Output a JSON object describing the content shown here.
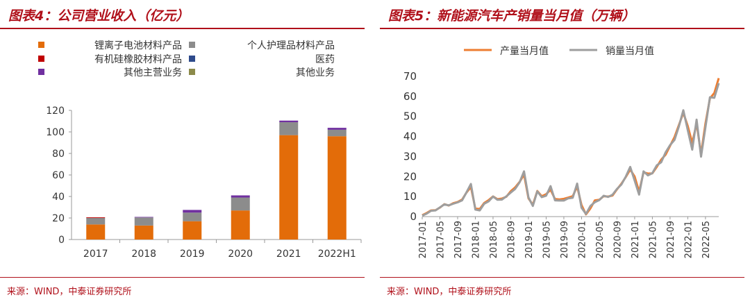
{
  "figures": [
    {
      "title": "图表4：公司营业收入（亿元）",
      "source": "来源：WIND，中泰证券研究所"
    },
    {
      "title": "图表5：新能源汽车产销量当月值（万辆）",
      "source": "来源：WIND，中泰证券研究所"
    }
  ],
  "chart_data": [
    {
      "type": "bar",
      "stacked": true,
      "title": "图表4：公司营业收入（亿元）",
      "categories": [
        "2017",
        "2018",
        "2019",
        "2020",
        "2021",
        "2022H1"
      ],
      "series": [
        {
          "name": "锂离子电池材料产品",
          "color": "#e36c09",
          "values": [
            14,
            13,
            17,
            27,
            97,
            96
          ]
        },
        {
          "name": "个人护理品材料产品",
          "color": "#8c8c8c",
          "values": [
            6,
            7.5,
            8,
            12,
            12,
            6
          ]
        },
        {
          "name": "有机硅橡胶材料产品",
          "color": "#c00000",
          "values": [
            0.6,
            0,
            0,
            0,
            0,
            0
          ]
        },
        {
          "name": "医药",
          "color": "#2e4a8b",
          "values": [
            0,
            0,
            0,
            0,
            0,
            0
          ]
        },
        {
          "name": "其他主营业务",
          "color": "#7030a0",
          "values": [
            0,
            0.5,
            2.5,
            2,
            1.5,
            1.8
          ]
        },
        {
          "name": "其他业务",
          "color": "#8c8a4a",
          "values": [
            0,
            0,
            0,
            0,
            0,
            0
          ]
        }
      ],
      "ylim": [
        0,
        120
      ],
      "yticks": [
        0,
        20,
        40,
        60,
        80,
        100,
        120
      ],
      "grid": false,
      "legend_position": "top"
    },
    {
      "type": "line",
      "title": "图表5：新能源汽车产销量当月值（万辆）",
      "x": [
        "2017-01",
        "2017-02",
        "2017-03",
        "2017-04",
        "2017-05",
        "2017-06",
        "2017-07",
        "2017-08",
        "2017-09",
        "2017-10",
        "2017-11",
        "2017-12",
        "2018-01",
        "2018-02",
        "2018-03",
        "2018-04",
        "2018-05",
        "2018-06",
        "2018-07",
        "2018-08",
        "2018-09",
        "2018-10",
        "2018-11",
        "2018-12",
        "2019-01",
        "2019-02",
        "2019-03",
        "2019-04",
        "2019-05",
        "2019-06",
        "2019-07",
        "2019-08",
        "2019-09",
        "2019-10",
        "2019-11",
        "2019-12",
        "2020-01",
        "2020-02",
        "2020-03",
        "2020-04",
        "2020-05",
        "2020-06",
        "2020-07",
        "2020-08",
        "2020-09",
        "2020-10",
        "2020-11",
        "2020-12",
        "2021-01",
        "2021-02",
        "2021-03",
        "2021-04",
        "2021-05",
        "2021-06",
        "2021-07",
        "2021-08",
        "2021-09",
        "2021-10",
        "2021-11",
        "2021-12",
        "2022-01",
        "2022-02",
        "2022-03",
        "2022-04",
        "2022-05",
        "2022-06",
        "2022-07",
        "2022-08"
      ],
      "xticks": [
        "2017-01",
        "2017-05",
        "2017-09",
        "2018-01",
        "2018-05",
        "2018-09",
        "2019-01",
        "2019-05",
        "2019-09",
        "2020-01",
        "2020-05",
        "2020-09",
        "2021-01",
        "2021-05",
        "2021-09",
        "2022-01",
        "2022-05"
      ],
      "series": [
        {
          "name": "产量当月值",
          "color": "#ed7d31",
          "values": [
            0.7,
            1.8,
            3.1,
            3.2,
            4.5,
            6.2,
            5.5,
            6.7,
            7.3,
            8.5,
            12.0,
            14.8,
            4.0,
            3.8,
            6.8,
            8.2,
            10.1,
            8.7,
            9.0,
            9.9,
            12.7,
            14.6,
            17.3,
            21.0,
            9.1,
            5.9,
            12.8,
            10.2,
            11.2,
            13.4,
            8.8,
            8.6,
            8.9,
            9.5,
            10.2,
            15.0,
            5.8,
            1.1,
            4.1,
            8.1,
            8.4,
            10.2,
            10.0,
            10.5,
            13.6,
            16.4,
            19.8,
            23.5,
            20.0,
            12.4,
            22.1,
            21.5,
            21.6,
            24.8,
            28.4,
            30.9,
            35.3,
            39.7,
            45.7,
            51.8,
            45.2,
            36.8,
            46.5,
            31.2,
            46.6,
            59.0,
            61.7,
            69.1
          ]
        },
        {
          "name": "销量当月值",
          "color": "#9e9e9e",
          "values": [
            0.5,
            1.5,
            2.9,
            3.1,
            4.6,
            6.1,
            5.6,
            6.4,
            7.1,
            8.1,
            12.1,
            16.3,
            3.5,
            3.1,
            6.4,
            7.6,
            10.0,
            8.4,
            8.5,
            10.1,
            12.0,
            13.8,
            17.1,
            22.6,
            9.6,
            5.3,
            12.6,
            9.7,
            10.4,
            15.2,
            8.1,
            8.0,
            8.0,
            9.1,
            9.4,
            16.5,
            4.4,
            1.3,
            5.3,
            7.2,
            8.2,
            10.4,
            9.8,
            10.9,
            13.8,
            16.0,
            20.0,
            24.8,
            18.0,
            11.0,
            22.6,
            20.6,
            21.7,
            25.6,
            27.1,
            32.1,
            35.7,
            38.3,
            45.0,
            53.1,
            43.1,
            33.4,
            48.4,
            29.9,
            44.7,
            59.6,
            59.3,
            66.6
          ]
        }
      ],
      "ylim": [
        0,
        70
      ],
      "yticks": [
        0,
        10,
        20,
        30,
        40,
        50,
        60,
        70
      ],
      "grid": false,
      "legend_position": "top"
    }
  ]
}
